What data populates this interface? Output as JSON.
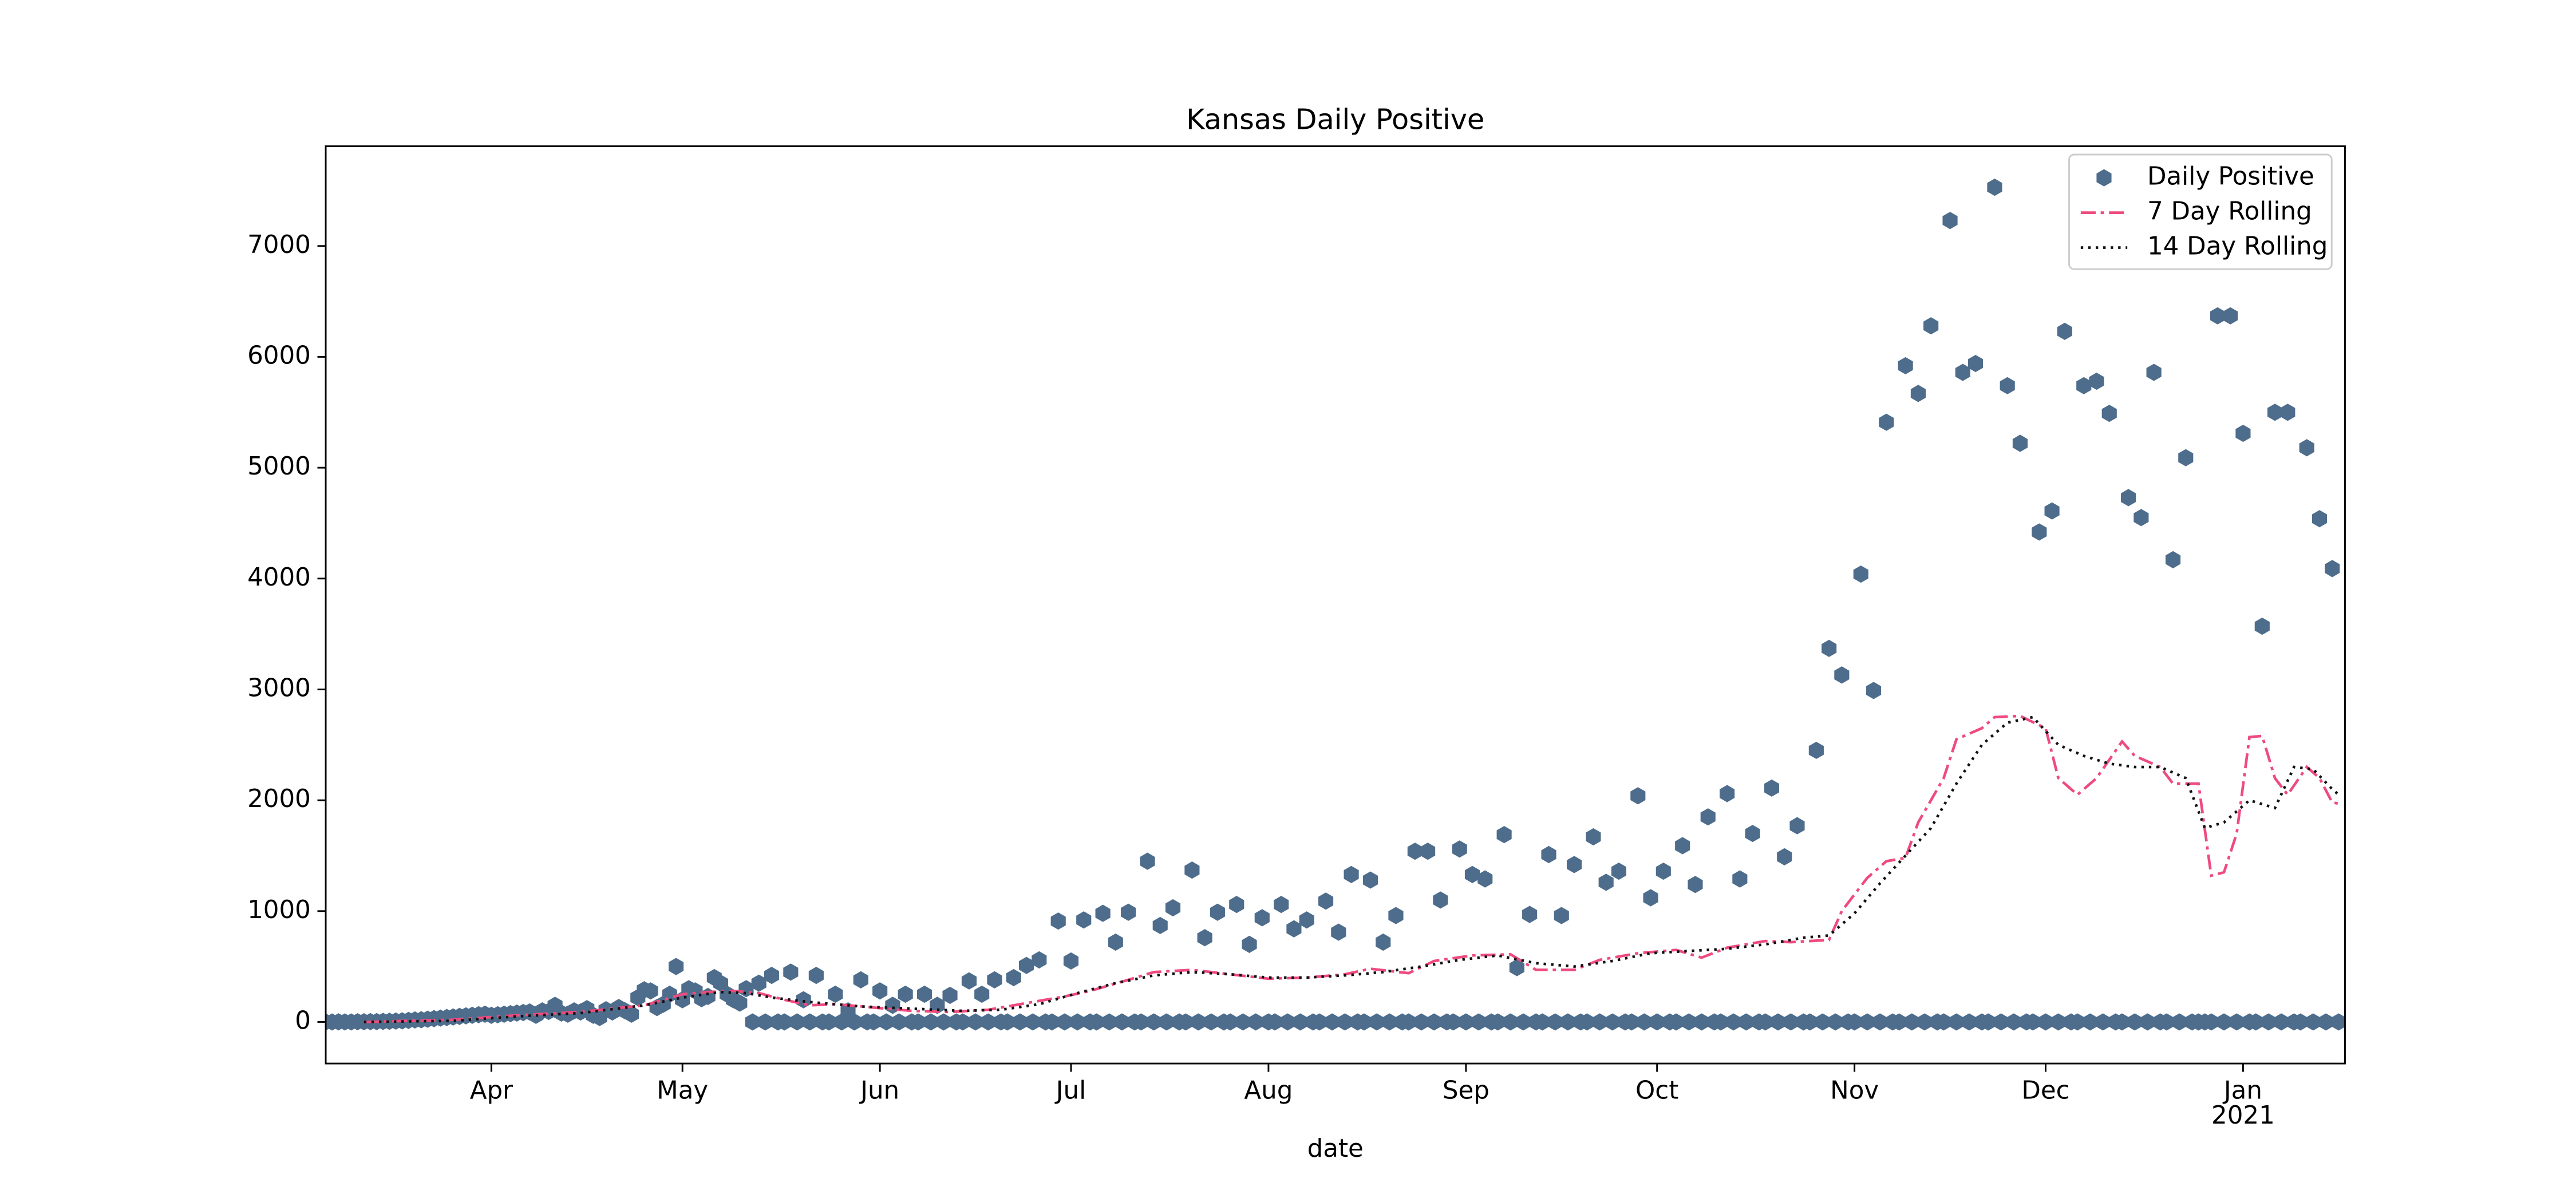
{
  "chart_data": {
    "type": "scatter",
    "title": "Kansas Daily Positive",
    "x_label": "date",
    "x_year_label": "2021",
    "xlim": [
      0,
      317
    ],
    "ylim": [
      -375,
      7900
    ],
    "xticks": [
      {
        "value": 26,
        "label": "Apr"
      },
      {
        "value": 56,
        "label": "May"
      },
      {
        "value": 87,
        "label": "Jun"
      },
      {
        "value": 117,
        "label": "Jul"
      },
      {
        "value": 148,
        "label": "Aug"
      },
      {
        "value": 179,
        "label": "Sep"
      },
      {
        "value": 209,
        "label": "Oct"
      },
      {
        "value": 240,
        "label": "Nov"
      },
      {
        "value": 270,
        "label": "Dec"
      },
      {
        "value": 301,
        "label": "Jan"
      }
    ],
    "yticks": [
      0,
      1000,
      2000,
      3000,
      4000,
      5000,
      6000,
      7000
    ],
    "legend": "upper right",
    "series": [
      {
        "name": "Daily Positive",
        "color": "#4e6d8c",
        "linestyle": "markers",
        "x": [
          0,
          1,
          2,
          3,
          4,
          5,
          6,
          7,
          8,
          9,
          10,
          11,
          12,
          13,
          14,
          15,
          16,
          17,
          18,
          19,
          20,
          21,
          22,
          23,
          24,
          25,
          26,
          27,
          28,
          29,
          30,
          31,
          32,
          33,
          34,
          35,
          36,
          37,
          38,
          39,
          40,
          41,
          42,
          43,
          44,
          45,
          46,
          47,
          48,
          49,
          50,
          51,
          52,
          53,
          54,
          55,
          56,
          57,
          58,
          59,
          60,
          61,
          62,
          63,
          64,
          65,
          66,
          67,
          68,
          69,
          70,
          71,
          72,
          73,
          74,
          75,
          76,
          77,
          78,
          79,
          80,
          81,
          82,
          83,
          84,
          85,
          86,
          87,
          88,
          89,
          90,
          91,
          92,
          93,
          94,
          95,
          96,
          97,
          98,
          99,
          100,
          101,
          102,
          103,
          104,
          105,
          106,
          107,
          108,
          109,
          110,
          111,
          112,
          113,
          114,
          115,
          116,
          117,
          118,
          119,
          120,
          121,
          122,
          123,
          124,
          125,
          126,
          127,
          128,
          129,
          130,
          131,
          132,
          133,
          134,
          135,
          136,
          137,
          138,
          139,
          140,
          141,
          142,
          143,
          144,
          145,
          146,
          147,
          148,
          149,
          150,
          151,
          152,
          153,
          154,
          155,
          156,
          157,
          158,
          159,
          160,
          161,
          162,
          163,
          164,
          165,
          166,
          167,
          168,
          169,
          170,
          171,
          172,
          173,
          174,
          175,
          176,
          177,
          178,
          179,
          180,
          181,
          182,
          183,
          184,
          185,
          186,
          187,
          188,
          189,
          190,
          191,
          192,
          193,
          194,
          195,
          196,
          197,
          198,
          199,
          200,
          201,
          202,
          203,
          204,
          205,
          206,
          207,
          208,
          209,
          210,
          211,
          212,
          213,
          214,
          215,
          216,
          217,
          218,
          219,
          220,
          221,
          222,
          223,
          224,
          225,
          226,
          227,
          228,
          229,
          230,
          231,
          232,
          233,
          234,
          235,
          236,
          237,
          238,
          239,
          240,
          241,
          242,
          243,
          244,
          245,
          246,
          247,
          248,
          249,
          250,
          251,
          252,
          253,
          254,
          255,
          256,
          257,
          258,
          259,
          260,
          261,
          262,
          263,
          264,
          265,
          266,
          267,
          268,
          269,
          270,
          271,
          272,
          273,
          274,
          275,
          276,
          277,
          278,
          279,
          280,
          281,
          282,
          283,
          284,
          285,
          286,
          287,
          288,
          289,
          290,
          291,
          292,
          293,
          294,
          295,
          296,
          297,
          298,
          299,
          300,
          301,
          302,
          303,
          304,
          305,
          306,
          307,
          308,
          309,
          310,
          311,
          312,
          313,
          314,
          315,
          316
        ],
        "values": [
          0,
          0,
          1,
          0,
          0,
          2,
          2,
          3,
          3,
          5,
          6,
          8,
          10,
          14,
          18,
          20,
          25,
          30,
          35,
          40,
          45,
          50,
          55,
          60,
          65,
          70,
          60,
          65,
          70,
          75,
          80,
          85,
          90,
          60,
          100,
          95,
          150,
          80,
          70,
          100,
          90,
          120,
          60,
          40,
          110,
          90,
          130,
          100,
          70,
          220,
          290,
          280,
          130,
          160,
          250,
          500,
          200,
          300,
          280,
          210,
          230,
          400,
          350,
          250,
          200,
          170,
          300,
          0,
          350,
          0,
          420,
          0,
          0,
          450,
          0,
          200,
          0,
          420,
          0,
          0,
          250,
          0,
          100,
          0,
          380,
          0,
          0,
          280,
          0,
          150,
          0,
          250,
          0,
          0,
          250,
          0,
          150,
          0,
          240,
          0,
          0,
          370,
          0,
          250,
          0,
          380,
          0,
          0,
          400,
          0,
          510,
          0,
          560,
          0,
          0,
          910,
          0,
          550,
          0,
          920,
          0,
          0,
          980,
          0,
          720,
          0,
          990,
          0,
          0,
          1450,
          0,
          870,
          0,
          1030,
          0,
          0,
          1370,
          0,
          760,
          0,
          990,
          0,
          0,
          1060,
          0,
          700,
          0,
          940,
          0,
          0,
          1060,
          0,
          840,
          0,
          920,
          0,
          0,
          1090,
          0,
          810,
          0,
          1330,
          0,
          0,
          1280,
          0,
          720,
          0,
          960,
          0,
          0,
          1540,
          0,
          1540,
          0,
          1100,
          0,
          0,
          1560,
          0,
          1330,
          0,
          1290,
          0,
          0,
          1690,
          0,
          490,
          0,
          970,
          0,
          0,
          1510,
          0,
          960,
          0,
          1420,
          0,
          0,
          1670,
          0,
          1260,
          0,
          1360,
          0,
          0,
          2040,
          0,
          1120,
          0,
          1360,
          0,
          0,
          1590,
          0,
          1240,
          0,
          1850,
          0,
          0,
          2060,
          0,
          1290,
          0,
          1700,
          0,
          0,
          2110,
          0,
          1490,
          0,
          1770,
          0,
          0,
          2450,
          0,
          3370,
          0,
          3130,
          0,
          0,
          4040,
          0,
          2990,
          0,
          5410,
          0,
          0,
          5920,
          0,
          5670,
          0,
          6280,
          0,
          0,
          7230,
          0,
          5860,
          0,
          5940,
          0,
          0,
          7530,
          0,
          5740,
          0,
          5220,
          0,
          0,
          4420,
          0,
          4610,
          0,
          6230,
          0,
          0,
          5740,
          0,
          5780,
          0,
          5490,
          0,
          0,
          4730,
          0,
          4550,
          0,
          5860,
          0,
          0,
          4170,
          0,
          5090,
          0,
          0,
          0,
          0,
          6370,
          0,
          6370,
          0,
          5310,
          0,
          0,
          3570,
          0,
          5500,
          0,
          5500,
          0,
          0,
          5180,
          0,
          4540,
          0,
          4090,
          0
        ]
      },
      {
        "name": "7 Day Rolling",
        "color": "#ee4b7f",
        "linestyle": "dashdot",
        "x": [
          6,
          20,
          30,
          40,
          50,
          56,
          60,
          64,
          68,
          72,
          76,
          80,
          86,
          92,
          98,
          104,
          110,
          116,
          120,
          126,
          130,
          136,
          142,
          148,
          154,
          160,
          164,
          170,
          174,
          180,
          186,
          190,
          196,
          200,
          206,
          212,
          216,
          220,
          226,
          230,
          236,
          238,
          242,
          245,
          248,
          250,
          254,
          256,
          260,
          262,
          266,
          270,
          272,
          275,
          278,
          282,
          284,
          288,
          290,
          294,
          296,
          298,
          300,
          302,
          304,
          306,
          308,
          311,
          313,
          315,
          316
        ],
        "values": [
          0,
          20,
          60,
          90,
          150,
          250,
          270,
          280,
          260,
          200,
          150,
          160,
          130,
          100,
          90,
          110,
          170,
          230,
          280,
          380,
          450,
          470,
          430,
          390,
          400,
          430,
          480,
          440,
          550,
          600,
          610,
          470,
          470,
          560,
          620,
          650,
          580,
          670,
          730,
          720,
          740,
          1000,
          1300,
          1450,
          1480,
          1800,
          2200,
          2550,
          2650,
          2750,
          2760,
          2650,
          2200,
          2050,
          2200,
          2530,
          2400,
          2300,
          2150,
          2150,
          1320,
          1350,
          1700,
          2570,
          2580,
          2200,
          2050,
          2300,
          2200,
          1980,
          1970
        ]
      },
      {
        "name": "14 Day Rolling",
        "color": "#111111",
        "linestyle": "dotted",
        "x": [
          6,
          20,
          30,
          40,
          50,
          56,
          62,
          66,
          70,
          76,
          84,
          92,
          100,
          106,
          112,
          118,
          124,
          130,
          136,
          142,
          148,
          154,
          160,
          166,
          172,
          178,
          184,
          190,
          196,
          202,
          208,
          214,
          220,
          226,
          232,
          236,
          240,
          244,
          248,
          252,
          256,
          260,
          264,
          268,
          272,
          276,
          280,
          284,
          288,
          292,
          295,
          298,
          302,
          306,
          309,
          312,
          315,
          316
        ],
        "values": [
          0,
          10,
          50,
          80,
          150,
          220,
          270,
          260,
          220,
          180,
          140,
          120,
          100,
          110,
          160,
          260,
          350,
          420,
          450,
          430,
          400,
          400,
          420,
          450,
          500,
          560,
          600,
          530,
          500,
          550,
          620,
          640,
          660,
          700,
          760,
          780,
          980,
          1250,
          1500,
          1750,
          2150,
          2500,
          2700,
          2750,
          2500,
          2400,
          2330,
          2300,
          2300,
          2200,
          1750,
          1800,
          2000,
          1930,
          2300,
          2280,
          2100,
          2050
        ]
      }
    ]
  }
}
